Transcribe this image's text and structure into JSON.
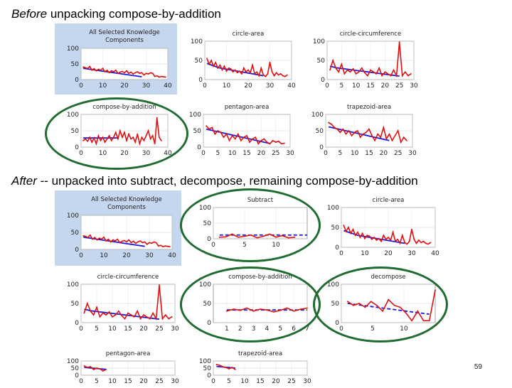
{
  "slide": {
    "before_caption": {
      "em": "Before",
      "rest": " unpacking compose-by-addition"
    },
    "after_caption": {
      "em": "After",
      "rest": " -- unpacked into subtract, decompose, remaining compose-by-addition"
    },
    "page_number": "59"
  },
  "colors": {
    "actual": "#e01010",
    "predicted": "#1a1ae0",
    "highlight": "#c5d7ef",
    "ellipse": "#1f6b30",
    "frame": "#888888"
  },
  "chart_data": [
    {
      "id": "b1",
      "type": "line",
      "title": "All Selected Knowledge Components",
      "xlim": [
        0,
        40
      ],
      "xticks": [
        0,
        10,
        20,
        30,
        40
      ],
      "ylim": [
        0,
        100
      ],
      "yticks": [
        0,
        50,
        100
      ],
      "predicted_style": "solid",
      "actual": [
        40,
        38,
        35,
        42,
        30,
        35,
        28,
        33,
        30,
        36,
        25,
        30,
        22,
        28,
        25,
        30,
        20,
        24,
        26,
        22,
        28,
        20,
        24,
        18,
        22,
        25,
        20,
        22,
        15,
        20,
        18,
        22,
        20,
        10,
        12,
        8,
        10,
        9,
        8
      ],
      "predicted": [
        36,
        35,
        34,
        33,
        32,
        31,
        30,
        29,
        28,
        27,
        26,
        25,
        24,
        23,
        22,
        21,
        20,
        19,
        18,
        17,
        16,
        15,
        14,
        13,
        12,
        11,
        10,
        9
      ]
    },
    {
      "id": "b2",
      "type": "line",
      "title": "circle-area",
      "xlim": [
        0,
        40
      ],
      "xticks": [
        0,
        10,
        20,
        30,
        40
      ],
      "ylim": [
        0,
        100
      ],
      "yticks": [
        0,
        50,
        100
      ],
      "predicted_style": "solid",
      "actual": [
        55,
        40,
        50,
        35,
        45,
        30,
        38,
        25,
        35,
        22,
        30,
        28,
        20,
        25,
        18,
        22,
        15,
        30,
        20,
        25,
        18,
        38,
        15,
        20,
        10,
        30,
        12,
        8,
        15,
        45,
        20,
        10,
        18,
        12,
        15,
        10,
        8,
        12
      ],
      "predicted": [
        42,
        40,
        38,
        36,
        34,
        32,
        30,
        29,
        28,
        27,
        26,
        25,
        24,
        23,
        22,
        21,
        20,
        19,
        18,
        17,
        16,
        15,
        14,
        13,
        12,
        11,
        10
      ]
    },
    {
      "id": "b3",
      "type": "line",
      "title": "circle-circumference",
      "xlim": [
        0,
        30
      ],
      "xticks": [
        0,
        5,
        10,
        15,
        20,
        25,
        30
      ],
      "ylim": [
        0,
        100
      ],
      "yticks": [
        0,
        50,
        100
      ],
      "predicted_style": "solid",
      "actual": [
        25,
        50,
        30,
        20,
        40,
        15,
        25,
        20,
        28,
        15,
        20,
        30,
        18,
        10,
        25,
        20,
        15,
        30,
        10,
        20,
        15,
        10,
        25,
        10,
        98,
        10,
        20,
        10,
        15
      ],
      "predicted": [
        35,
        33,
        31,
        30,
        29,
        28,
        27,
        26,
        25,
        24,
        23,
        22,
        21,
        20,
        19,
        18,
        17,
        16,
        15,
        14,
        13,
        12,
        11,
        10,
        9
      ]
    },
    {
      "id": "b4",
      "type": "line",
      "title": "compose-by-addition",
      "xlim": [
        0,
        40
      ],
      "xticks": [
        0,
        10,
        20,
        30,
        40
      ],
      "ylim": [
        0,
        100
      ],
      "yticks": [
        0,
        50,
        100
      ],
      "predicted_style": "solid",
      "actual": [
        20,
        25,
        18,
        30,
        15,
        28,
        10,
        35,
        20,
        30,
        15,
        25,
        35,
        20,
        30,
        45,
        25,
        50,
        30,
        45,
        20,
        40,
        25,
        30,
        15,
        40,
        10,
        30,
        20,
        35,
        50,
        25,
        35,
        10,
        90,
        30,
        20
      ],
      "predicted": [
        28,
        28,
        28,
        28,
        28,
        28,
        28,
        28,
        28,
        28,
        28,
        28,
        28,
        28,
        28,
        28,
        28
      ]
    },
    {
      "id": "b5",
      "type": "line",
      "title": "pentagon-area",
      "xlim": [
        0,
        30
      ],
      "xticks": [
        0,
        5,
        10,
        15,
        20,
        25,
        30
      ],
      "ylim": [
        0,
        100
      ],
      "yticks": [
        0,
        50,
        100
      ],
      "predicted_style": "solid",
      "actual": [
        65,
        55,
        60,
        40,
        50,
        45,
        30,
        40,
        20,
        35,
        25,
        40,
        20,
        30,
        35,
        15,
        25,
        30,
        10,
        20,
        25,
        15,
        10,
        20,
        15,
        18,
        10,
        12
      ],
      "predicted": [
        55,
        53,
        51,
        49,
        47,
        45,
        43,
        41,
        39,
        37,
        35,
        33,
        31,
        29,
        27,
        25,
        23,
        21,
        19,
        17,
        15,
        13,
        11
      ]
    },
    {
      "id": "b6",
      "type": "line",
      "title": "trapezoid-area",
      "xlim": [
        0,
        30
      ],
      "xticks": [
        0,
        5,
        10,
        15,
        20,
        25,
        30
      ],
      "ylim": [
        0,
        100
      ],
      "yticks": [
        0,
        50,
        100
      ],
      "predicted_style": "solid",
      "actual": [
        75,
        70,
        60,
        55,
        45,
        55,
        40,
        50,
        35,
        45,
        50,
        30,
        40,
        45,
        55,
        35,
        20,
        40,
        30,
        60,
        25,
        40,
        20,
        35,
        50,
        15,
        30,
        20
      ],
      "predicted": [
        62,
        60,
        58,
        56,
        54,
        52,
        50,
        48,
        46,
        44,
        42,
        40,
        38,
        36,
        34,
        32,
        30,
        28,
        26,
        24,
        22,
        20
      ]
    },
    {
      "id": "a1",
      "type": "line",
      "title": "All Selected Knowledge Components",
      "xlim": [
        0,
        40
      ],
      "xticks": [
        0,
        10,
        20,
        30,
        40
      ],
      "ylim": [
        0,
        100
      ],
      "yticks": [
        0,
        50,
        100
      ],
      "predicted_style": "solid",
      "actual": [
        40,
        38,
        35,
        42,
        30,
        35,
        28,
        33,
        30,
        36,
        25,
        30,
        22,
        28,
        25,
        30,
        20,
        24,
        26,
        22,
        28,
        20,
        24,
        18,
        22,
        25,
        20,
        22,
        15,
        20,
        18,
        22,
        20,
        10,
        12,
        8,
        10,
        9,
        8
      ],
      "predicted": [
        36,
        35,
        34,
        33,
        32,
        31,
        30,
        29,
        28,
        27,
        26,
        25,
        24,
        23,
        22,
        21,
        20,
        19,
        18,
        17,
        16,
        15,
        14,
        13,
        12,
        11,
        10,
        9
      ]
    },
    {
      "id": "a2",
      "type": "line",
      "title": "Subtract",
      "xlim": [
        0,
        15
      ],
      "xticks": [
        0,
        5,
        10
      ],
      "ylim": [
        0,
        100
      ],
      "yticks": [
        0,
        50,
        100
      ],
      "predicted_style": "dashed",
      "actual": [
        5,
        6,
        15,
        5,
        8,
        12,
        3,
        8,
        15,
        5,
        10,
        3,
        5
      ],
      "predicted": [
        12,
        12,
        12,
        12,
        12,
        12,
        12,
        12,
        12,
        12,
        12,
        12,
        12,
        12,
        12
      ]
    },
    {
      "id": "a3",
      "type": "line",
      "title": "circle-area",
      "xlim": [
        0,
        40
      ],
      "xticks": [
        0,
        10,
        20,
        30,
        40
      ],
      "ylim": [
        0,
        100
      ],
      "yticks": [
        0,
        50,
        100
      ],
      "predicted_style": "solid",
      "actual": [
        55,
        40,
        50,
        35,
        45,
        30,
        38,
        25,
        35,
        22,
        30,
        28,
        20,
        25,
        18,
        22,
        15,
        30,
        20,
        25,
        18,
        38,
        15,
        20,
        10,
        30,
        12,
        8,
        15,
        45,
        20,
        10,
        18,
        12,
        15,
        10,
        8,
        12
      ],
      "predicted": [
        42,
        40,
        38,
        36,
        34,
        32,
        30,
        29,
        28,
        27,
        26,
        25,
        24,
        23,
        22,
        21,
        20,
        19,
        18,
        17,
        16,
        15,
        14,
        13,
        12,
        11,
        10
      ]
    },
    {
      "id": "a4",
      "type": "line",
      "title": "circle-circumference",
      "xlim": [
        0,
        30
      ],
      "xticks": [
        0,
        5,
        10,
        15,
        20,
        25,
        30
      ],
      "ylim": [
        0,
        100
      ],
      "yticks": [
        0,
        50,
        100
      ],
      "predicted_style": "solid",
      "actual": [
        25,
        50,
        30,
        20,
        40,
        15,
        25,
        20,
        28,
        15,
        20,
        30,
        18,
        10,
        25,
        20,
        15,
        30,
        10,
        20,
        15,
        10,
        25,
        10,
        98,
        10,
        20,
        10,
        15
      ],
      "predicted": [
        35,
        33,
        31,
        30,
        29,
        28,
        27,
        26,
        25,
        24,
        23,
        22,
        21,
        20,
        19,
        18,
        17,
        16,
        15,
        14,
        13,
        12,
        11,
        10,
        9
      ]
    },
    {
      "id": "a5",
      "type": "line",
      "title": "compose-by-addition",
      "xlim": [
        0,
        7
      ],
      "xticks": [
        1,
        2,
        3,
        4,
        5,
        6,
        7
      ],
      "xstart": 1,
      "ylim": [
        0,
        100
      ],
      "yticks": [
        0,
        50,
        100
      ],
      "predicted_style": "dashed",
      "actual": [
        30,
        35,
        32,
        38,
        30,
        35,
        33,
        28,
        32,
        38,
        30,
        35,
        38
      ],
      "predicted": [
        33,
        33,
        33,
        33,
        33,
        33,
        33,
        33,
        33,
        33,
        33,
        33,
        33
      ]
    },
    {
      "id": "a6",
      "type": "line",
      "title": "decompose",
      "xlim": [
        0,
        15
      ],
      "xticks": [
        0,
        5,
        10
      ],
      "ylim": [
        0,
        100
      ],
      "yticks": [
        0,
        50,
        100
      ],
      "predicted_style": "dashed",
      "actual": [
        55,
        45,
        50,
        40,
        55,
        45,
        30,
        60,
        45,
        40,
        25,
        5,
        30,
        5,
        5,
        85
      ],
      "predicted": [
        50,
        48,
        46,
        44,
        42,
        40,
        38,
        36,
        34,
        32,
        30,
        28,
        26,
        24,
        22
      ]
    },
    {
      "id": "a7",
      "type": "line",
      "title": "pentagon-area",
      "xlim": [
        0,
        30
      ],
      "xticks": [
        0,
        5,
        10,
        15,
        20,
        25,
        30
      ],
      "ylim": [
        0,
        100
      ],
      "yticks": [
        0,
        50,
        100
      ],
      "predicted_style": "solid",
      "actual": [
        65,
        55,
        60,
        40,
        50,
        45,
        30,
        40
      ],
      "predicted": [
        55,
        53,
        51,
        49,
        47,
        45,
        43,
        41
      ]
    },
    {
      "id": "a8",
      "type": "line",
      "title": "trapezoid-area",
      "xlim": [
        0,
        30
      ],
      "xticks": [
        0,
        5,
        10,
        15,
        20,
        25,
        30
      ],
      "ylim": [
        0,
        100
      ],
      "yticks": [
        0,
        50,
        100
      ],
      "predicted_style": "solid",
      "actual": [
        75,
        70,
        60,
        55,
        45,
        55,
        40
      ],
      "predicted": [
        62,
        60,
        58,
        56,
        54,
        52,
        50
      ]
    }
  ]
}
